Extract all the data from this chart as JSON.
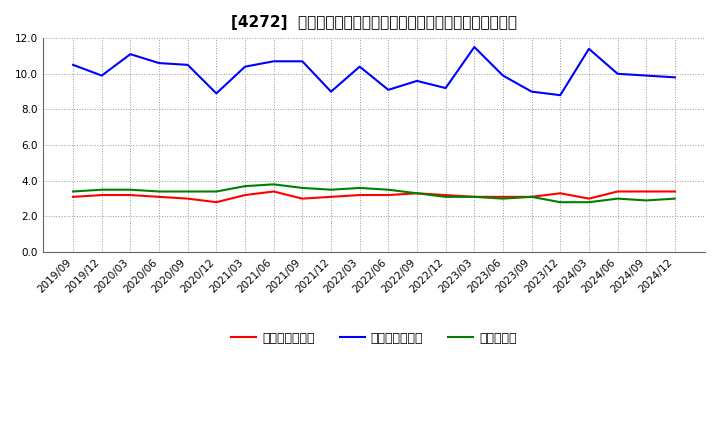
{
  "title": "[4272]  売上債権回転率、買入債務回転率、在庫回転率の推移",
  "dates": [
    "2019/09",
    "2019/12",
    "2020/03",
    "2020/06",
    "2020/09",
    "2020/12",
    "2021/03",
    "2021/06",
    "2021/09",
    "2021/12",
    "2022/03",
    "2022/06",
    "2022/09",
    "2022/12",
    "2023/03",
    "2023/06",
    "2023/09",
    "2023/12",
    "2024/03",
    "2024/06",
    "2024/09",
    "2024/12"
  ],
  "receivables_turnover": [
    3.1,
    3.2,
    3.2,
    3.1,
    3.0,
    2.8,
    3.2,
    3.4,
    3.0,
    3.1,
    3.2,
    3.2,
    3.3,
    3.2,
    3.1,
    3.1,
    3.1,
    3.3,
    3.0,
    3.4,
    3.4,
    3.4
  ],
  "payables_turnover": [
    10.5,
    9.9,
    11.1,
    10.6,
    10.5,
    8.9,
    10.4,
    10.7,
    10.7,
    9.0,
    10.4,
    9.1,
    9.6,
    9.2,
    11.5,
    9.9,
    9.0,
    8.8,
    11.4,
    10.0,
    9.9,
    9.8
  ],
  "inventory_turnover": [
    3.4,
    3.5,
    3.5,
    3.4,
    3.4,
    3.4,
    3.7,
    3.8,
    3.6,
    3.5,
    3.6,
    3.5,
    3.3,
    3.1,
    3.1,
    3.0,
    3.1,
    2.8,
    2.8,
    3.0,
    2.9,
    3.0
  ],
  "receivables_color": "#ff0000",
  "payables_color": "#0000ff",
  "inventory_color": "#008000",
  "bg_color": "#ffffff",
  "plot_bg_color": "#ffffff",
  "ylim": [
    0.0,
    12.0
  ],
  "yticks": [
    0.0,
    2.0,
    4.0,
    6.0,
    8.0,
    10.0,
    12.0
  ],
  "legend_labels": [
    "売上債権回転率",
    "買入債務回転率",
    "在庫回転率"
  ],
  "title_fontsize": 11,
  "legend_fontsize": 9,
  "tick_fontsize": 7.5,
  "line_width": 1.5
}
